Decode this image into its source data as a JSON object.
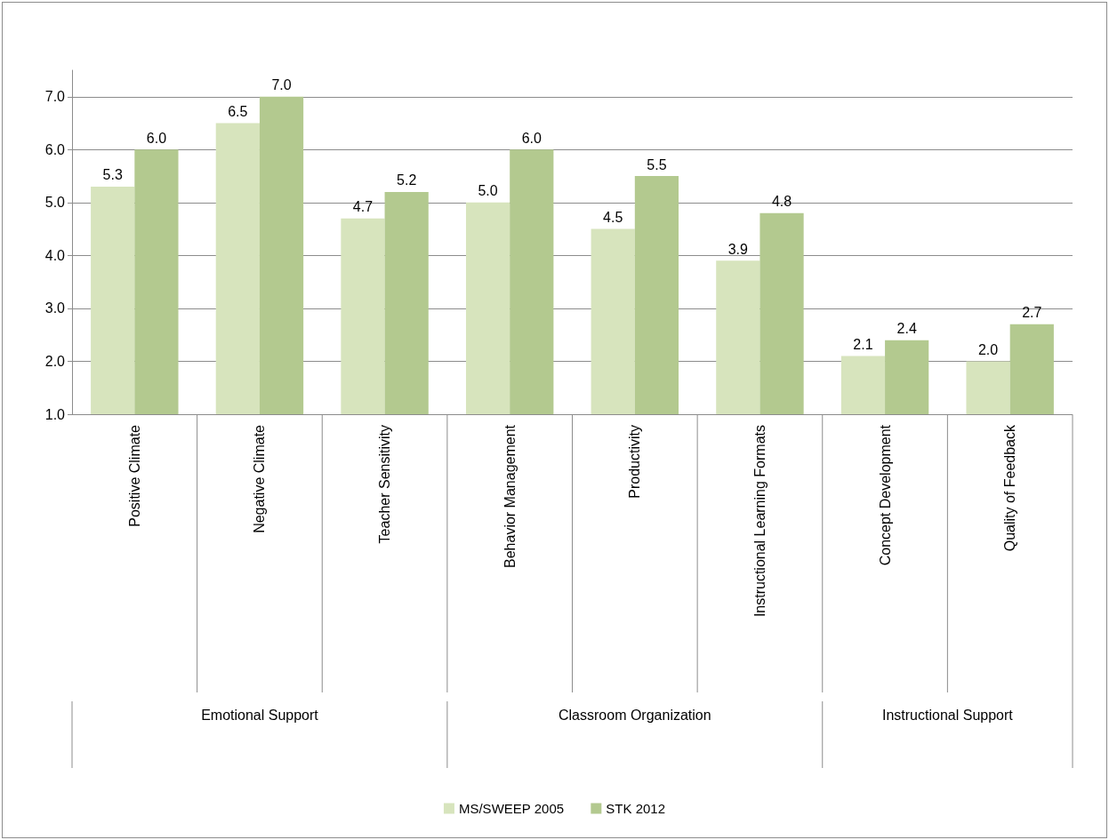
{
  "chart_data": {
    "type": "bar",
    "categories": [
      "Positive Climate",
      "Negative Climate",
      "Teacher Sensitivity",
      "Behavior Management",
      "Productivity",
      "Instructional Learning Formats",
      "Concept Development",
      "Quality of Feedback"
    ],
    "series": [
      {
        "name": "MS/SWEEP 2005",
        "color": "#d7e4bd",
        "values": [
          5.3,
          6.5,
          4.7,
          5.0,
          4.5,
          3.9,
          2.1,
          2.0
        ],
        "value_labels": [
          "5.3",
          "6.5",
          "4.7",
          "5.0",
          "4.5",
          "3.9",
          "2.1",
          "2.0"
        ]
      },
      {
        "name": "STK 2012",
        "color": "#b3c98f",
        "values": [
          6.0,
          7.0,
          5.2,
          6.0,
          5.5,
          4.8,
          2.4,
          2.7
        ],
        "value_labels": [
          "6.0",
          "7.0",
          "5.2",
          "6.0",
          "5.5",
          "4.8",
          "2.4",
          "2.7"
        ]
      }
    ],
    "ylim": [
      1,
      7.5
    ],
    "yticks": [
      {
        "value": 1,
        "label": "1.0"
      },
      {
        "value": 2,
        "label": "2.0"
      },
      {
        "value": 3,
        "label": "3.0"
      },
      {
        "value": 4,
        "label": "4.0"
      },
      {
        "value": 5,
        "label": "5.0"
      },
      {
        "value": 6,
        "label": "6.0"
      },
      {
        "value": 7,
        "label": "7.0"
      }
    ],
    "annotations": [
      "Emotional Support",
      "Classroom Organization",
      "Instructional Support"
    ],
    "grid": "y",
    "legend": "bottom"
  }
}
